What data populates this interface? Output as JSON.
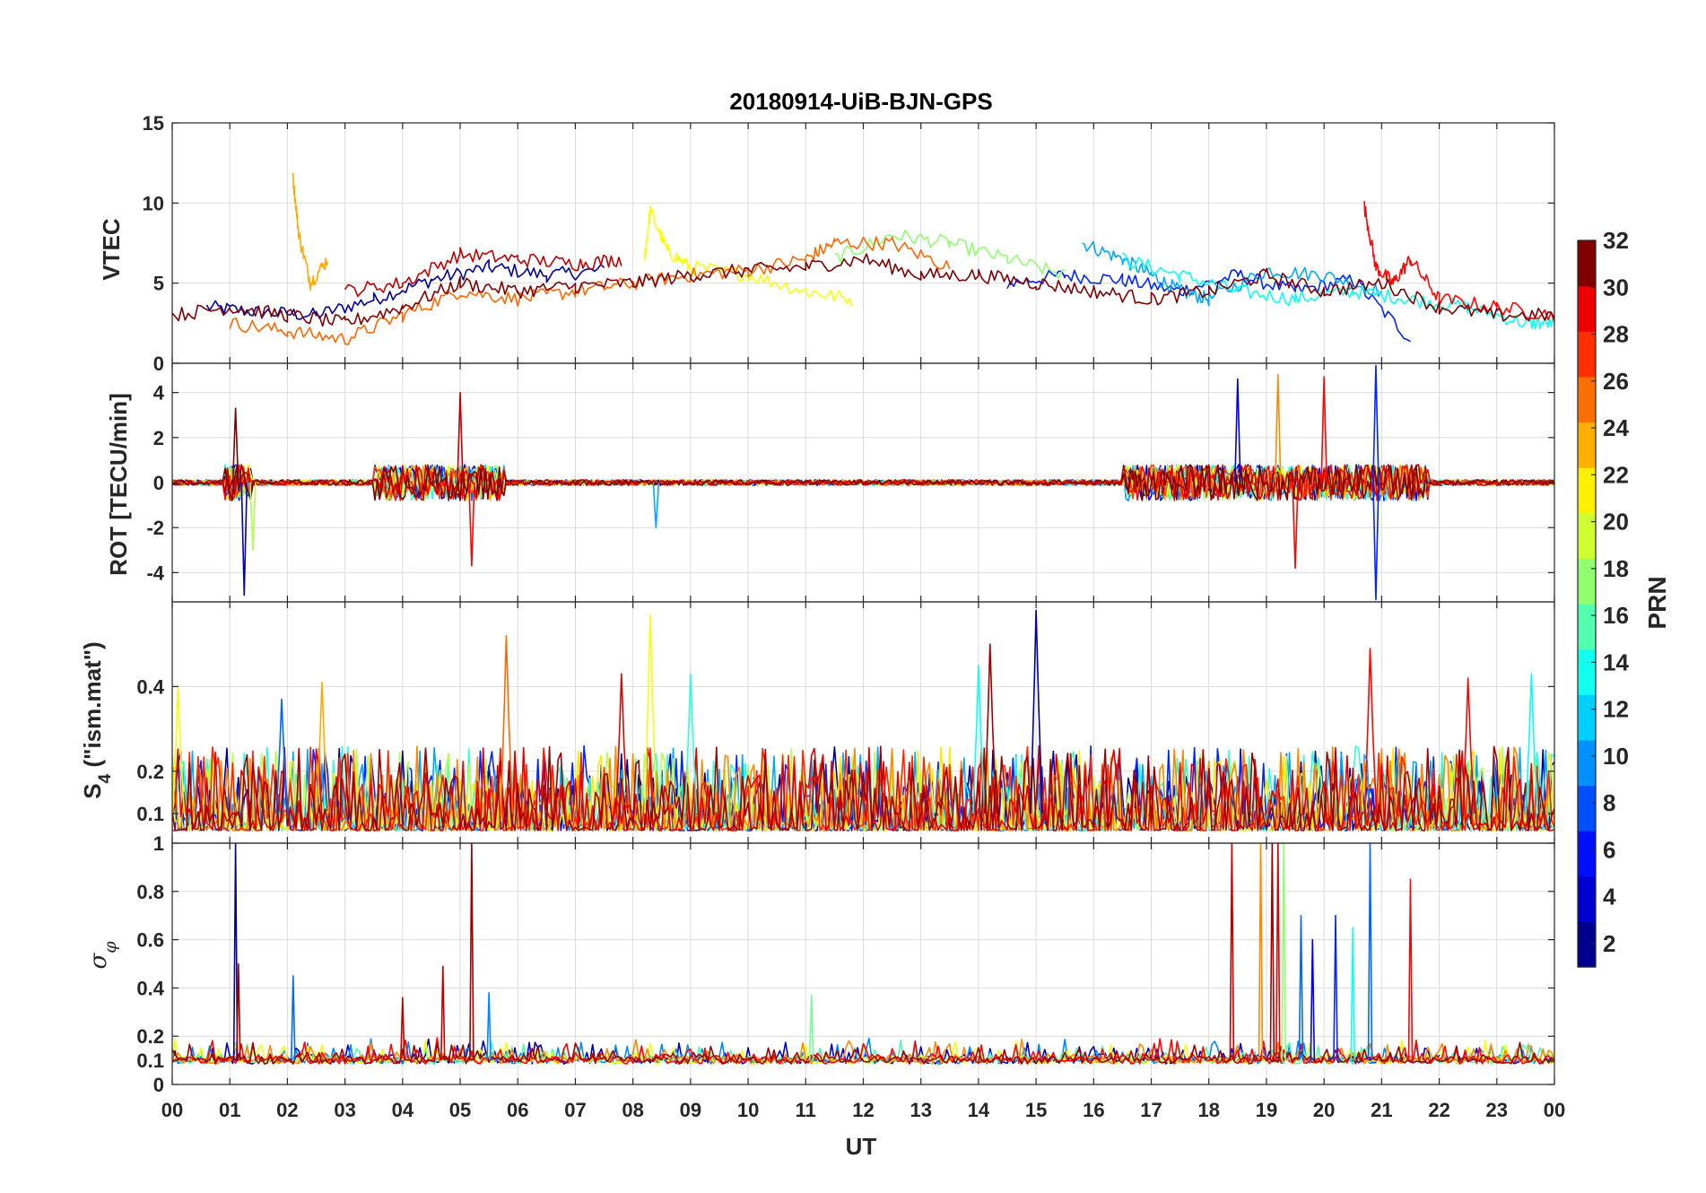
{
  "chart_data": {
    "type": "line",
    "title": "20180914-UiB-BJN-GPS",
    "xlabel": "UT",
    "x_ticks": [
      "00",
      "01",
      "02",
      "03",
      "04",
      "05",
      "06",
      "07",
      "08",
      "09",
      "10",
      "11",
      "12",
      "13",
      "14",
      "15",
      "16",
      "17",
      "18",
      "19",
      "20",
      "21",
      "22",
      "23",
      "00"
    ],
    "xlim_hours": [
      0,
      24
    ],
    "grid": true,
    "colorbar": {
      "label": "PRN",
      "range": [
        1,
        32
      ],
      "ticks": [
        "2",
        "4",
        "6",
        "8",
        "10",
        "12",
        "14",
        "16",
        "18",
        "20",
        "22",
        "24",
        "26",
        "28",
        "30",
        "32"
      ],
      "colormap": "jet",
      "colors": [
        "#00008f",
        "#0000d0",
        "#0010ff",
        "#0050ff",
        "#0090ff",
        "#00d0ff",
        "#10ffef",
        "#50ffaf",
        "#90ff6f",
        "#d0ff2f",
        "#ffef00",
        "#ffaf00",
        "#ff6f00",
        "#ff2f00",
        "#ef0000",
        "#800000"
      ],
      "position": "right"
    },
    "panels": [
      {
        "name": "vtec",
        "ylabel": "VTEC",
        "ylim": [
          0,
          15
        ],
        "y_ticks": [
          "0",
          "5",
          "10",
          "15"
        ],
        "y_tick_values": [
          0,
          5,
          10,
          15
        ],
        "series": [
          {
            "prn": 2,
            "x": [
              0.6,
              1.5,
              2.5,
              3.5,
              4.5,
              5.5,
              6.5,
              7.5
            ],
            "y": [
              3.5,
              3.2,
              3.0,
              4.0,
              5.2,
              6.0,
              5.5,
              5.8
            ]
          },
          {
            "prn": 6,
            "x": [
              14.5,
              15.5,
              16.5,
              17.5,
              18.5,
              19.5,
              20.5,
              21.5
            ],
            "y": [
              5.0,
              5.5,
              5.2,
              4.5,
              5.5,
              4.5,
              5.2,
              1.5
            ]
          },
          {
            "prn": 10,
            "x": [
              15.8,
              16.5,
              17.0,
              17.5,
              18.0,
              19.0,
              20.0,
              21.0
            ],
            "y": [
              7.5,
              6.5,
              5.5,
              4.5,
              4.0,
              5.8,
              5.5,
              4.5
            ]
          },
          {
            "prn": 13,
            "x": [
              16.5,
              17.5,
              18.5,
              19.5,
              20.5,
              21.5,
              22.5,
              23.5,
              24.0
            ],
            "y": [
              6.5,
              5.5,
              4.5,
              4.0,
              4.5,
              4.0,
              3.5,
              2.5,
              2.5
            ]
          },
          {
            "prn": 17,
            "x": [
              11.5,
              12.5,
              13.5,
              14.5,
              15.5
            ],
            "y": [
              6.5,
              8.0,
              7.5,
              6.5,
              5.5
            ]
          },
          {
            "prn": 20,
            "x": [
              8.2,
              8.3,
              8.6,
              9.0,
              10.0,
              11.0,
              11.8
            ],
            "y": [
              6.5,
              9.5,
              7.0,
              6.0,
              5.5,
              4.5,
              4.0
            ]
          },
          {
            "prn": 23,
            "x": [
              2.1,
              2.2,
              2.4,
              2.7
            ],
            "y": [
              11.5,
              8.0,
              5.0,
              6.5
            ]
          },
          {
            "prn": 25,
            "x": [
              1.0,
              2.0,
              3.0,
              4.0,
              5.0,
              6.0,
              7.0,
              8.0,
              9.0,
              10.0,
              11.0,
              11.5,
              12.5,
              13.5
            ],
            "y": [
              2.5,
              2.0,
              1.5,
              3.0,
              4.5,
              4.0,
              4.5,
              5.0,
              5.5,
              5.8,
              6.5,
              7.5,
              7.5,
              6.0
            ]
          },
          {
            "prn": 28,
            "x": [
              20.7,
              20.9,
              21.2,
              21.5,
              22.0,
              23.0,
              24.0
            ],
            "y": [
              9.8,
              6.0,
              5.0,
              6.5,
              4.0,
              3.5,
              3.0
            ]
          },
          {
            "prn": 30,
            "x": [
              3.0,
              4.0,
              5.0,
              6.0,
              7.0,
              7.8
            ],
            "y": [
              4.5,
              5.0,
              6.8,
              6.5,
              6.2,
              6.5
            ]
          },
          {
            "prn": 32,
            "x": [
              0.0,
              1.0,
              2.0,
              3.0,
              4.0,
              5.0,
              6.0,
              7.0,
              8.0,
              9.0,
              10.0,
              11.0,
              12.0,
              13.0,
              14.0,
              15.0,
              16.0,
              17.0,
              18.0,
              19.0,
              20.0,
              21.0,
              22.0,
              23.0,
              24.0
            ],
            "y": [
              3.0,
              3.5,
              3.0,
              2.5,
              3.5,
              5.0,
              4.5,
              4.8,
              5.0,
              5.5,
              5.8,
              6.0,
              6.5,
              5.5,
              5.5,
              5.0,
              4.5,
              4.0,
              4.5,
              5.5,
              4.5,
              5.0,
              3.5,
              3.0,
              3.0
            ]
          }
        ]
      },
      {
        "name": "rot",
        "ylabel": "ROT [TECU/min]",
        "ylim": [
          -5.3,
          5.3
        ],
        "y_ticks": [
          "-4",
          "-2",
          "0",
          "2",
          "4"
        ],
        "y_tick_values": [
          -4,
          -2,
          0,
          2,
          4
        ],
        "active_bursts_hours": [
          [
            0.9,
            1.4
          ],
          [
            3.5,
            5.8
          ],
          [
            16.5,
            21.8
          ]
        ],
        "peaks": [
          {
            "x": 1.1,
            "y": 3.3,
            "prn": 32
          },
          {
            "x": 1.25,
            "y": -5.0,
            "prn": 3
          },
          {
            "x": 1.4,
            "y": -3.0,
            "prn": 18
          },
          {
            "x": 5.0,
            "y": 4.0,
            "prn": 30
          },
          {
            "x": 5.2,
            "y": -3.7,
            "prn": 28
          },
          {
            "x": 8.4,
            "y": -2.0,
            "prn": 10
          },
          {
            "x": 18.5,
            "y": 4.6,
            "prn": 4
          },
          {
            "x": 19.2,
            "y": 4.8,
            "prn": 24
          },
          {
            "x": 20.0,
            "y": 4.7,
            "prn": 28
          },
          {
            "x": 20.9,
            "y": 5.2,
            "prn": 6
          },
          {
            "x": 20.9,
            "y": -5.2,
            "prn": 6
          },
          {
            "x": 19.5,
            "y": -3.8,
            "prn": 28
          }
        ]
      },
      {
        "name": "s4",
        "ylabel": "S4 (\"ism.mat\")",
        "ylabel_main": "S",
        "ylabel_sub": "4",
        "ylabel_rest": " (\"ism.mat\")",
        "ylim": [
          0.03,
          0.6
        ],
        "y_ticks": [
          "0.1",
          "0.2",
          "0.4"
        ],
        "y_tick_values": [
          0.1,
          0.2,
          0.4
        ],
        "peaks": [
          {
            "x": 0.1,
            "y": 0.4,
            "prn": 20
          },
          {
            "x": 1.9,
            "y": 0.37,
            "prn": 8
          },
          {
            "x": 2.6,
            "y": 0.41,
            "prn": 23
          },
          {
            "x": 5.8,
            "y": 0.52,
            "prn": 25
          },
          {
            "x": 7.8,
            "y": 0.43,
            "prn": 29
          },
          {
            "x": 8.3,
            "y": 0.57,
            "prn": 20
          },
          {
            "x": 9.0,
            "y": 0.43,
            "prn": 14
          },
          {
            "x": 14.0,
            "y": 0.45,
            "prn": 13
          },
          {
            "x": 14.2,
            "y": 0.5,
            "prn": 31
          },
          {
            "x": 15.0,
            "y": 0.58,
            "prn": 2
          },
          {
            "x": 20.8,
            "y": 0.49,
            "prn": 28
          },
          {
            "x": 22.5,
            "y": 0.42,
            "prn": 28
          },
          {
            "x": 23.6,
            "y": 0.43,
            "prn": 13
          }
        ]
      },
      {
        "name": "sigma_phi",
        "ylabel": "σφ",
        "ylabel_main": "σ",
        "ylabel_sub": "φ",
        "ylim": [
          0,
          1
        ],
        "y_ticks": [
          "0",
          "0.1",
          "0.2",
          "0.4",
          "0.6",
          "0.8",
          "1"
        ],
        "y_tick_values": [
          0,
          0.1,
          0.2,
          0.4,
          0.6,
          0.8,
          1
        ],
        "baseline": 0.1,
        "peaks": [
          {
            "x": 1.1,
            "y": 1.0,
            "prn": 2
          },
          {
            "x": 1.15,
            "y": 0.5,
            "prn": 31
          },
          {
            "x": 2.1,
            "y": 0.45,
            "prn": 8
          },
          {
            "x": 4.0,
            "y": 0.36,
            "prn": 30
          },
          {
            "x": 4.7,
            "y": 0.49,
            "prn": 30
          },
          {
            "x": 5.2,
            "y": 1.0,
            "prn": 31
          },
          {
            "x": 5.5,
            "y": 0.38,
            "prn": 9
          },
          {
            "x": 11.1,
            "y": 0.37,
            "prn": 16
          },
          {
            "x": 18.4,
            "y": 1.0,
            "prn": 30
          },
          {
            "x": 18.9,
            "y": 1.0,
            "prn": 24
          },
          {
            "x": 19.1,
            "y": 1.0,
            "prn": 31
          },
          {
            "x": 19.2,
            "y": 1.0,
            "prn": 29
          },
          {
            "x": 19.3,
            "y": 1.0,
            "prn": 17
          },
          {
            "x": 19.6,
            "y": 0.7,
            "prn": 8
          },
          {
            "x": 19.8,
            "y": 0.6,
            "prn": 4
          },
          {
            "x": 20.2,
            "y": 0.7,
            "prn": 6
          },
          {
            "x": 20.5,
            "y": 0.65,
            "prn": 13
          },
          {
            "x": 20.8,
            "y": 1.0,
            "prn": 8
          },
          {
            "x": 21.5,
            "y": 0.85,
            "prn": 28
          }
        ]
      }
    ]
  }
}
